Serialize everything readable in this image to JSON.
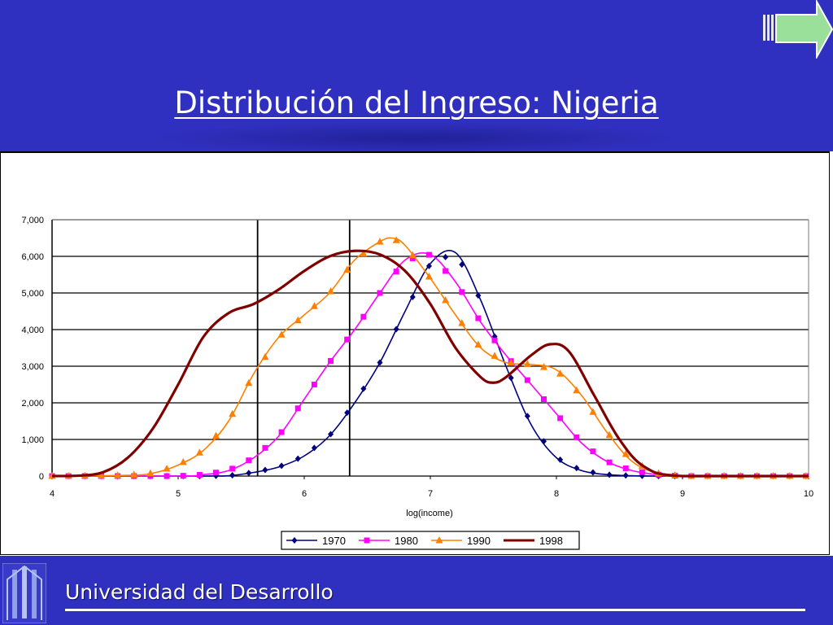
{
  "slide": {
    "title": "Distribución del Ingreso: Nigeria",
    "footer": "Universidad del Desarrollo",
    "colors": {
      "background_blue": "#3030c0",
      "button_green": "#9adf9a"
    },
    "next_button_icon": "right-arrow-icon",
    "logo_icon": "university-logo-icon"
  },
  "chart_data": {
    "type": "line",
    "title": "",
    "xlabel": "log(income)",
    "ylabel": "",
    "xlim": [
      4,
      10
    ],
    "ylim": [
      0,
      7000
    ],
    "xticks": [
      "4",
      "5",
      "6",
      "7",
      "8",
      "9",
      "10"
    ],
    "yticks": [
      "0",
      "1,000",
      "2,000",
      "3,000",
      "4,000",
      "5,000",
      "6,000",
      "7,000"
    ],
    "vertical_reference_lines": [
      5.63,
      6.36
    ],
    "grid": "horizontal",
    "legend": "bottom",
    "series": [
      {
        "name": "1970",
        "color": "#000080",
        "marker": "diamond",
        "x": [
          4.0,
          5.2,
          5.4,
          5.6,
          5.8,
          6.0,
          6.2,
          6.4,
          6.6,
          6.8,
          7.0,
          7.2,
          7.4,
          7.6,
          7.8,
          8.0,
          8.2,
          8.4,
          8.6,
          8.8,
          9.0,
          10.0
        ],
        "y": [
          0,
          0,
          10,
          100,
          250,
          550,
          1100,
          2000,
          3100,
          4500,
          5800,
          6100,
          4800,
          3000,
          1400,
          500,
          150,
          40,
          10,
          0,
          0,
          0
        ]
      },
      {
        "name": "1980",
        "color": "#ff00ff",
        "marker": "square",
        "x": [
          4.0,
          5.0,
          5.2,
          5.4,
          5.6,
          5.8,
          6.0,
          6.2,
          6.4,
          6.6,
          6.8,
          7.0,
          7.2,
          7.4,
          7.6,
          7.8,
          8.0,
          8.2,
          8.4,
          8.6,
          8.8,
          9.0,
          10.0
        ],
        "y": [
          0,
          0,
          40,
          150,
          500,
          1100,
          2100,
          3100,
          4000,
          5000,
          5900,
          6050,
          5300,
          4200,
          3300,
          2500,
          1700,
          900,
          400,
          150,
          40,
          0,
          0
        ]
      },
      {
        "name": "1990",
        "color": "#ff8000",
        "marker": "triangle",
        "x": [
          4.0,
          4.6,
          4.8,
          5.0,
          5.2,
          5.4,
          5.6,
          5.8,
          6.0,
          6.2,
          6.4,
          6.6,
          6.7,
          6.8,
          7.0,
          7.2,
          7.4,
          7.6,
          7.8,
          8.0,
          8.2,
          8.4,
          8.6,
          8.8,
          9.0,
          10.0
        ],
        "y": [
          0,
          20,
          80,
          300,
          700,
          1500,
          2800,
          3800,
          4400,
          5000,
          5900,
          6400,
          6500,
          6300,
          5400,
          4400,
          3500,
          3100,
          3050,
          2900,
          2200,
          1200,
          400,
          80,
          0,
          0
        ]
      },
      {
        "name": "1998",
        "color": "#800000",
        "marker": "none",
        "x": [
          4.0,
          4.2,
          4.4,
          4.6,
          4.8,
          5.0,
          5.2,
          5.4,
          5.6,
          5.8,
          6.0,
          6.2,
          6.4,
          6.6,
          6.8,
          7.0,
          7.2,
          7.4,
          7.5,
          7.6,
          7.8,
          7.95,
          8.1,
          8.3,
          8.5,
          8.7,
          9.0,
          10.0
        ],
        "y": [
          0,
          10,
          100,
          500,
          1300,
          2500,
          3800,
          4450,
          4700,
          5100,
          5600,
          6000,
          6150,
          6050,
          5600,
          4700,
          3500,
          2700,
          2550,
          2700,
          3300,
          3600,
          3400,
          2200,
          1000,
          250,
          0,
          0
        ]
      }
    ]
  }
}
